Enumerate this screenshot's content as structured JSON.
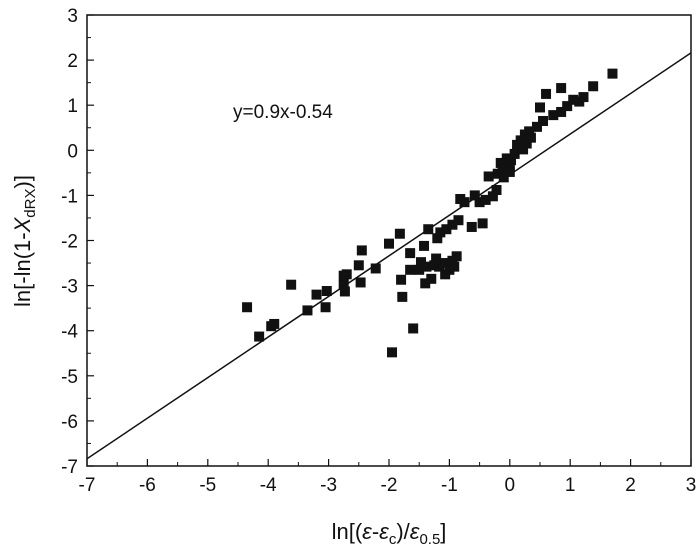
{
  "chart_data": {
    "type": "scatter",
    "title": "",
    "xlim": [
      -7,
      3
    ],
    "ylim": [
      -7,
      3
    ],
    "x_ticks": [
      "-7",
      "-6",
      "-5",
      "-4",
      "-3",
      "-2",
      "-1",
      "0",
      "1",
      "2",
      "3"
    ],
    "y_ticks": [
      "3",
      "2",
      "1",
      "0",
      "-1",
      "-2",
      "-3",
      "-4",
      "-5",
      "-6",
      "-7"
    ],
    "x_ticks_values": [
      -7,
      -6,
      -5,
      -4,
      -3,
      -2,
      -1,
      0,
      1,
      2,
      3
    ],
    "y_ticks_values": [
      3,
      2,
      1,
      0,
      -1,
      -2,
      -3,
      -4,
      -5,
      -6,
      -7
    ],
    "xlabel": {
      "prefix": "ln[(",
      "eps1": "ε",
      "minus": "-",
      "eps2": "ε",
      "sub_c": "c",
      "mid": ")/",
      "eps3": "ε",
      "sub_half": "0.5",
      "suffix": "]"
    },
    "ylabel": {
      "prefix": "ln[-ln(1-",
      "var": "X",
      "sub": "dRX",
      "suffix": ")]"
    },
    "annotation": "y=0.9x-0.54",
    "fit_line": {
      "slope": 0.9,
      "intercept": -0.54
    },
    "grid": false,
    "legend": "none",
    "marker": "square",
    "color": "#111111",
    "points": [
      [
        -4.35,
        -3.48
      ],
      [
        -4.15,
        -4.13
      ],
      [
        -3.95,
        -3.9
      ],
      [
        -3.9,
        -3.85
      ],
      [
        -3.62,
        -2.98
      ],
      [
        -3.35,
        -3.55
      ],
      [
        -3.2,
        -3.2
      ],
      [
        -3.05,
        -3.48
      ],
      [
        -3.03,
        -3.12
      ],
      [
        -2.75,
        -2.98
      ],
      [
        -2.73,
        -3.13
      ],
      [
        -2.75,
        -2.78
      ],
      [
        -2.7,
        -2.75
      ],
      [
        -2.5,
        -2.55
      ],
      [
        -2.47,
        -2.93
      ],
      [
        -2.45,
        -2.22
      ],
      [
        -2.22,
        -2.62
      ],
      [
        -2.0,
        -2.07
      ],
      [
        -1.95,
        -4.48
      ],
      [
        -1.82,
        -1.85
      ],
      [
        -1.78,
        -3.25
      ],
      [
        -1.8,
        -2.87
      ],
      [
        -1.65,
        -2.65
      ],
      [
        -1.65,
        -2.28
      ],
      [
        -1.6,
        -3.95
      ],
      [
        -1.5,
        -2.65
      ],
      [
        -1.47,
        -2.48
      ],
      [
        -1.42,
        -2.12
      ],
      [
        -1.4,
        -2.95
      ],
      [
        -1.38,
        -2.58
      ],
      [
        -1.35,
        -1.75
      ],
      [
        -1.3,
        -2.85
      ],
      [
        -1.25,
        -2.55
      ],
      [
        -1.22,
        -2.4
      ],
      [
        -1.2,
        -1.95
      ],
      [
        -1.17,
        -2.58
      ],
      [
        -1.15,
        -1.82
      ],
      [
        -1.1,
        -2.5
      ],
      [
        -1.07,
        -2.75
      ],
      [
        -1.05,
        -1.75
      ],
      [
        -1.0,
        -2.65
      ],
      [
        -0.95,
        -2.45
      ],
      [
        -0.95,
        -1.65
      ],
      [
        -0.92,
        -2.58
      ],
      [
        -0.88,
        -2.35
      ],
      [
        -0.85,
        -1.55
      ],
      [
        -0.82,
        -1.08
      ],
      [
        -0.75,
        -1.15
      ],
      [
        -0.63,
        -1.7
      ],
      [
        -0.58,
        -1.0
      ],
      [
        -0.5,
        -1.15
      ],
      [
        -0.45,
        -1.62
      ],
      [
        -0.4,
        -1.1
      ],
      [
        -0.35,
        -0.58
      ],
      [
        -0.28,
        -1.02
      ],
      [
        -0.22,
        -0.88
      ],
      [
        -0.2,
        -0.52
      ],
      [
        -0.15,
        -0.28
      ],
      [
        -0.12,
        -0.42
      ],
      [
        -0.1,
        -0.6
      ],
      [
        -0.05,
        -0.18
      ],
      [
        0.0,
        -0.35
      ],
      [
        0.0,
        -0.48
      ],
      [
        0.02,
        -0.22
      ],
      [
        0.08,
        -0.08
      ],
      [
        0.12,
        0.12
      ],
      [
        0.18,
        0.22
      ],
      [
        0.22,
        0.02
      ],
      [
        0.25,
        0.35
      ],
      [
        0.28,
        0.15
      ],
      [
        0.32,
        0.42
      ],
      [
        0.35,
        0.28
      ],
      [
        0.45,
        0.52
      ],
      [
        0.5,
        0.95
      ],
      [
        0.55,
        0.65
      ],
      [
        0.6,
        1.25
      ],
      [
        0.72,
        0.78
      ],
      [
        0.85,
        0.85
      ],
      [
        0.85,
        1.38
      ],
      [
        0.95,
        0.98
      ],
      [
        1.05,
        1.12
      ],
      [
        1.15,
        1.08
      ],
      [
        1.22,
        1.18
      ],
      [
        1.38,
        1.42
      ],
      [
        1.7,
        1.7
      ]
    ]
  }
}
